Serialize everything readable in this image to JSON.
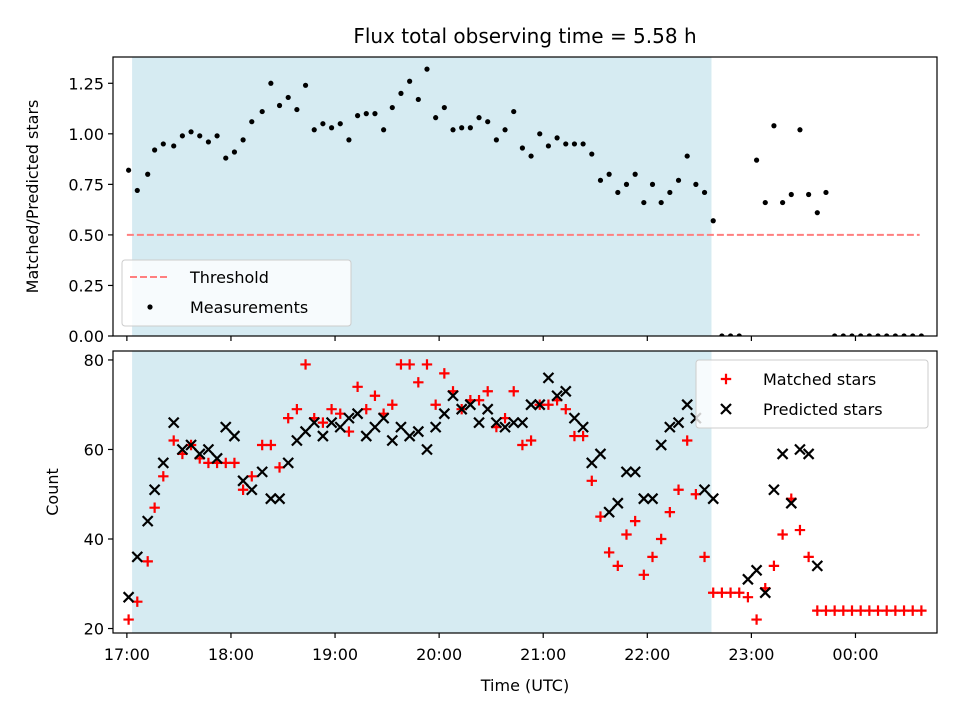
{
  "chart_data": [
    {
      "type": "scatter",
      "title": "Flux total observing time = 5.58 h",
      "xlabel": "",
      "ylabel": "Matched/Predicted stars",
      "ylim": [
        0,
        1.38
      ],
      "yticks": [
        "0.00",
        "0.25",
        "0.50",
        "0.75",
        "1.00",
        "1.25"
      ],
      "grid": false,
      "legend_position": "lower-left",
      "observing_window": {
        "start": "17:03",
        "end": "22:37",
        "color": "#add8e6"
      },
      "threshold": {
        "name": "Threshold",
        "value": 0.5,
        "x_start": "17:00",
        "x_end": "00:37",
        "color": "#ff7f7f",
        "style": "dashed"
      },
      "series": [
        {
          "name": "Measurements",
          "color": "#000000",
          "marker": "dot",
          "points": [
            [
              "17:01",
              0.82
            ],
            [
              "17:06",
              0.72
            ],
            [
              "17:12",
              0.8
            ],
            [
              "17:16",
              0.92
            ],
            [
              "17:21",
              0.95
            ],
            [
              "17:27",
              0.94
            ],
            [
              "17:32",
              0.99
            ],
            [
              "17:37",
              1.01
            ],
            [
              "17:42",
              0.99
            ],
            [
              "17:47",
              0.96
            ],
            [
              "17:52",
              0.99
            ],
            [
              "17:57",
              0.88
            ],
            [
              "18:02",
              0.91
            ],
            [
              "18:07",
              0.97
            ],
            [
              "18:12",
              1.06
            ],
            [
              "18:18",
              1.11
            ],
            [
              "18:23",
              1.25
            ],
            [
              "18:28",
              1.14
            ],
            [
              "18:33",
              1.18
            ],
            [
              "18:38",
              1.12
            ],
            [
              "18:43",
              1.24
            ],
            [
              "18:48",
              1.02
            ],
            [
              "18:53",
              1.05
            ],
            [
              "18:58",
              1.03
            ],
            [
              "19:03",
              1.05
            ],
            [
              "19:08",
              0.97
            ],
            [
              "19:13",
              1.09
            ],
            [
              "19:18",
              1.1
            ],
            [
              "19:23",
              1.1
            ],
            [
              "19:28",
              1.02
            ],
            [
              "19:33",
              1.13
            ],
            [
              "19:38",
              1.2
            ],
            [
              "19:43",
              1.26
            ],
            [
              "19:48",
              1.17
            ],
            [
              "19:53",
              1.32
            ],
            [
              "19:58",
              1.08
            ],
            [
              "20:03",
              1.13
            ],
            [
              "20:08",
              1.02
            ],
            [
              "20:13",
              1.03
            ],
            [
              "20:18",
              1.03
            ],
            [
              "20:23",
              1.08
            ],
            [
              "20:28",
              1.06
            ],
            [
              "20:33",
              0.97
            ],
            [
              "20:38",
              1.02
            ],
            [
              "20:43",
              1.11
            ],
            [
              "20:48",
              0.93
            ],
            [
              "20:53",
              0.89
            ],
            [
              "20:58",
              1.0
            ],
            [
              "21:03",
              0.94
            ],
            [
              "21:08",
              0.98
            ],
            [
              "21:13",
              0.95
            ],
            [
              "21:18",
              0.95
            ],
            [
              "21:23",
              0.95
            ],
            [
              "21:28",
              0.9
            ],
            [
              "21:33",
              0.77
            ],
            [
              "21:38",
              0.8
            ],
            [
              "21:43",
              0.71
            ],
            [
              "21:48",
              0.75
            ],
            [
              "21:53",
              0.8
            ],
            [
              "21:58",
              0.66
            ],
            [
              "22:03",
              0.75
            ],
            [
              "22:08",
              0.66
            ],
            [
              "22:13",
              0.71
            ],
            [
              "22:18",
              0.77
            ],
            [
              "22:23",
              0.89
            ],
            [
              "22:28",
              0.75
            ],
            [
              "22:33",
              0.71
            ],
            [
              "22:38",
              0.57
            ],
            [
              "22:43",
              0.0
            ],
            [
              "22:48",
              0.0
            ],
            [
              "22:53",
              0.0
            ],
            [
              "23:03",
              0.87
            ],
            [
              "23:08",
              0.66
            ],
            [
              "23:13",
              1.04
            ],
            [
              "23:18",
              0.66
            ],
            [
              "23:23",
              0.7
            ],
            [
              "23:28",
              1.02
            ],
            [
              "23:33",
              0.7
            ],
            [
              "23:38",
              0.61
            ],
            [
              "23:43",
              0.71
            ],
            [
              "23:48",
              0.0
            ],
            [
              "23:53",
              0.0
            ],
            [
              "23:58",
              0.0
            ],
            [
              "00:03",
              0.0
            ],
            [
              "00:08",
              0.0
            ],
            [
              "00:13",
              0.0
            ],
            [
              "00:18",
              0.0
            ],
            [
              "00:23",
              0.0
            ],
            [
              "00:28",
              0.0
            ],
            [
              "00:33",
              0.0
            ],
            [
              "00:38",
              0.0
            ]
          ]
        }
      ]
    },
    {
      "type": "scatter",
      "title": "",
      "xlabel": "Time (UTC)",
      "ylabel": "Count",
      "ylim": [
        19,
        82
      ],
      "yticks": [
        "20",
        "40",
        "60",
        "80"
      ],
      "xticks": [
        "17:00",
        "18:00",
        "19:00",
        "20:00",
        "21:00",
        "22:00",
        "23:00",
        "00:00"
      ],
      "grid": false,
      "legend_position": "upper-right",
      "observing_window": {
        "start": "17:03",
        "end": "22:37",
        "color": "#add8e6"
      },
      "series": [
        {
          "name": "Matched stars",
          "color": "#ff0000",
          "marker": "plus",
          "points": [
            [
              "17:01",
              22
            ],
            [
              "17:06",
              26
            ],
            [
              "17:12",
              35
            ],
            [
              "17:16",
              47
            ],
            [
              "17:21",
              54
            ],
            [
              "17:27",
              62
            ],
            [
              "17:32",
              59
            ],
            [
              "17:37",
              61
            ],
            [
              "17:42",
              58
            ],
            [
              "17:47",
              57
            ],
            [
              "17:52",
              57
            ],
            [
              "17:57",
              57
            ],
            [
              "18:02",
              57
            ],
            [
              "18:07",
              51
            ],
            [
              "18:12",
              54
            ],
            [
              "18:18",
              61
            ],
            [
              "18:23",
              61
            ],
            [
              "18:28",
              56
            ],
            [
              "18:33",
              67
            ],
            [
              "18:38",
              69
            ],
            [
              "18:43",
              79
            ],
            [
              "18:48",
              67
            ],
            [
              "18:53",
              66
            ],
            [
              "18:58",
              69
            ],
            [
              "19:03",
              68
            ],
            [
              "19:08",
              64
            ],
            [
              "19:13",
              74
            ],
            [
              "19:18",
              69
            ],
            [
              "19:23",
              72
            ],
            [
              "19:28",
              68
            ],
            [
              "19:33",
              70
            ],
            [
              "19:38",
              79
            ],
            [
              "19:43",
              79
            ],
            [
              "19:48",
              75
            ],
            [
              "19:53",
              79
            ],
            [
              "19:58",
              70
            ],
            [
              "20:03",
              77
            ],
            [
              "20:08",
              73
            ],
            [
              "20:13",
              69
            ],
            [
              "20:18",
              71
            ],
            [
              "20:23",
              71
            ],
            [
              "20:28",
              73
            ],
            [
              "20:33",
              65
            ],
            [
              "20:38",
              67
            ],
            [
              "20:43",
              73
            ],
            [
              "20:48",
              61
            ],
            [
              "20:53",
              62
            ],
            [
              "20:58",
              70
            ],
            [
              "21:03",
              70
            ],
            [
              "21:08",
              71
            ],
            [
              "21:13",
              69
            ],
            [
              "21:18",
              63
            ],
            [
              "21:23",
              63
            ],
            [
              "21:28",
              53
            ],
            [
              "21:33",
              45
            ],
            [
              "21:38",
              37
            ],
            [
              "21:43",
              34
            ],
            [
              "21:48",
              41
            ],
            [
              "21:53",
              44
            ],
            [
              "21:58",
              32
            ],
            [
              "22:03",
              36
            ],
            [
              "22:08",
              40
            ],
            [
              "22:13",
              46
            ],
            [
              "22:18",
              51
            ],
            [
              "22:23",
              62
            ],
            [
              "22:28",
              50
            ],
            [
              "22:33",
              36
            ],
            [
              "22:38",
              28
            ],
            [
              "22:43",
              28
            ],
            [
              "22:48",
              28
            ],
            [
              "22:53",
              28
            ],
            [
              "22:58",
              27
            ],
            [
              "23:03",
              22
            ],
            [
              "23:08",
              29
            ],
            [
              "23:13",
              34
            ],
            [
              "23:18",
              41
            ],
            [
              "23:23",
              49
            ],
            [
              "23:28",
              42
            ],
            [
              "23:33",
              36
            ],
            [
              "23:38",
              24
            ],
            [
              "23:43",
              24
            ],
            [
              "23:48",
              24
            ],
            [
              "23:53",
              24
            ],
            [
              "23:58",
              24
            ],
            [
              "00:03",
              24
            ],
            [
              "00:08",
              24
            ],
            [
              "00:13",
              24
            ],
            [
              "00:18",
              24
            ],
            [
              "00:23",
              24
            ],
            [
              "00:28",
              24
            ],
            [
              "00:33",
              24
            ],
            [
              "00:38",
              24
            ]
          ]
        },
        {
          "name": "Predicted stars",
          "color": "#000000",
          "marker": "x",
          "points": [
            [
              "17:01",
              27
            ],
            [
              "17:06",
              36
            ],
            [
              "17:12",
              44
            ],
            [
              "17:16",
              51
            ],
            [
              "17:21",
              57
            ],
            [
              "17:27",
              66
            ],
            [
              "17:32",
              60
            ],
            [
              "17:37",
              61
            ],
            [
              "17:42",
              59
            ],
            [
              "17:47",
              60
            ],
            [
              "17:52",
              58
            ],
            [
              "17:57",
              65
            ],
            [
              "18:02",
              63
            ],
            [
              "18:07",
              53
            ],
            [
              "18:12",
              51
            ],
            [
              "18:18",
              55
            ],
            [
              "18:23",
              49
            ],
            [
              "18:28",
              49
            ],
            [
              "18:33",
              57
            ],
            [
              "18:38",
              62
            ],
            [
              "18:43",
              64
            ],
            [
              "18:48",
              66
            ],
            [
              "18:53",
              63
            ],
            [
              "18:58",
              66
            ],
            [
              "19:03",
              65
            ],
            [
              "19:08",
              67
            ],
            [
              "19:13",
              68
            ],
            [
              "19:18",
              63
            ],
            [
              "19:23",
              65
            ],
            [
              "19:28",
              67
            ],
            [
              "19:33",
              62
            ],
            [
              "19:38",
              65
            ],
            [
              "19:43",
              63
            ],
            [
              "19:48",
              64
            ],
            [
              "19:53",
              60
            ],
            [
              "19:58",
              65
            ],
            [
              "20:03",
              68
            ],
            [
              "20:08",
              72
            ],
            [
              "20:13",
              69
            ],
            [
              "20:18",
              70
            ],
            [
              "20:23",
              66
            ],
            [
              "20:28",
              69
            ],
            [
              "20:33",
              66
            ],
            [
              "20:38",
              65
            ],
            [
              "20:43",
              66
            ],
            [
              "20:48",
              66
            ],
            [
              "20:53",
              70
            ],
            [
              "20:58",
              70
            ],
            [
              "21:03",
              76
            ],
            [
              "21:08",
              72
            ],
            [
              "21:13",
              73
            ],
            [
              "21:18",
              67
            ],
            [
              "21:23",
              65
            ],
            [
              "21:28",
              57
            ],
            [
              "21:33",
              59
            ],
            [
              "21:38",
              46
            ],
            [
              "21:43",
              48
            ],
            [
              "21:48",
              55
            ],
            [
              "21:53",
              55
            ],
            [
              "21:58",
              49
            ],
            [
              "22:03",
              49
            ],
            [
              "22:08",
              61
            ],
            [
              "22:13",
              65
            ],
            [
              "22:18",
              66
            ],
            [
              "22:23",
              70
            ],
            [
              "22:28",
              67
            ],
            [
              "22:33",
              51
            ],
            [
              "22:38",
              49
            ],
            [
              "22:58",
              31
            ],
            [
              "23:03",
              33
            ],
            [
              "23:08",
              28
            ],
            [
              "23:13",
              51
            ],
            [
              "23:18",
              59
            ],
            [
              "23:23",
              48
            ],
            [
              "23:28",
              60
            ],
            [
              "23:33",
              59
            ],
            [
              "23:38",
              34
            ]
          ]
        }
      ]
    }
  ]
}
